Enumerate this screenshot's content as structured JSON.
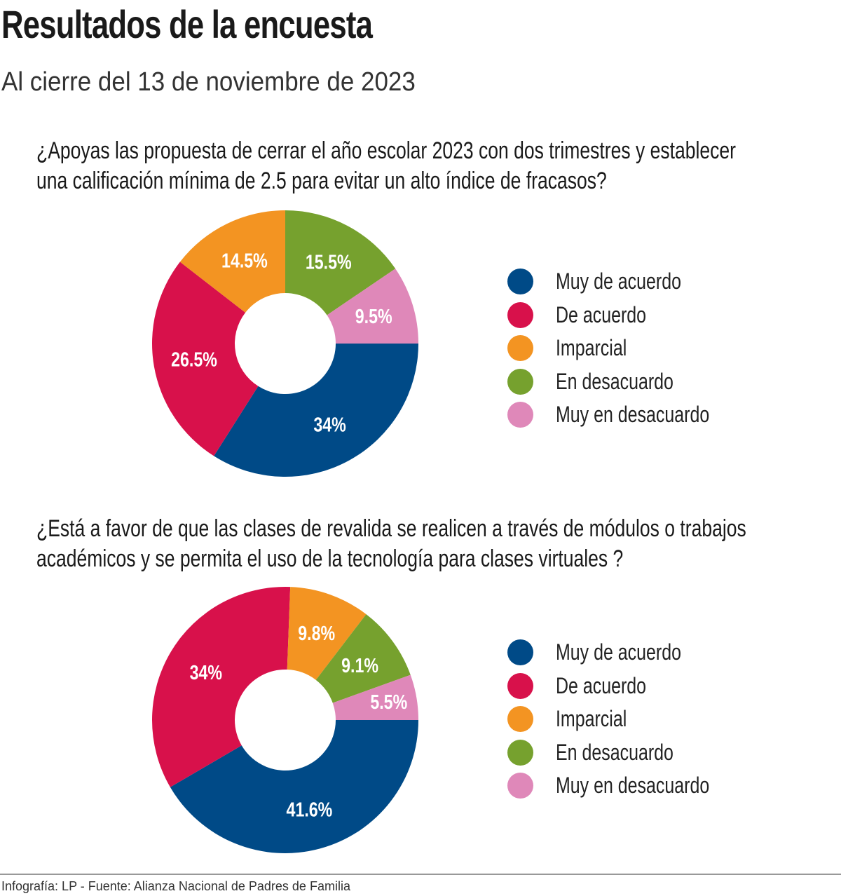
{
  "title": "Resultados de la encuesta",
  "subtitle": "Al cierre del 13 de noviembre de 2023",
  "footer": "Infografía: LP - Fuente: Alianza Nacional de Padres de Familia",
  "colors": {
    "Muy de acuerdo": "#004a87",
    "De acuerdo": "#d8114b",
    "Imparcial": "#f39422",
    "En desacuardo": "#76a12e",
    "Muy en desacuardo": "#df88b9"
  },
  "chart_data": [
    {
      "type": "pie",
      "donut": true,
      "title_lines": [
        "¿Apoyas las propuesta de cerrar el año escolar 2023 con dos trimestres y establecer",
        "una calificación mínima de 2.5 para evitar un alto índice de fracasos?"
      ],
      "categories": [
        "Muy de acuerdo",
        "De acuerdo",
        "Imparcial",
        "En desacuardo",
        "Muy en desacuardo"
      ],
      "values": [
        34,
        26.5,
        14.5,
        15.5,
        9.5
      ],
      "labels": [
        "34%",
        "26.5%",
        "14.5%",
        "15.5%",
        "9.5%"
      ],
      "legend": "right"
    },
    {
      "type": "pie",
      "donut": true,
      "title_lines": [
        "¿Está a favor de que las clases de revalida se realicen a través de módulos o trabajos",
        "académicos y se permita el uso de la tecnología para clases virtuales ?"
      ],
      "categories": [
        "Muy de acuerdo",
        "De acuerdo",
        "Imparcial",
        "En desacuardo",
        "Muy en desacuardo"
      ],
      "values": [
        41.6,
        34,
        9.8,
        9.1,
        5.5
      ],
      "labels": [
        "41.6%",
        "34%",
        "9.8%",
        "9.1%",
        "5.5%"
      ],
      "legend": "right"
    }
  ]
}
